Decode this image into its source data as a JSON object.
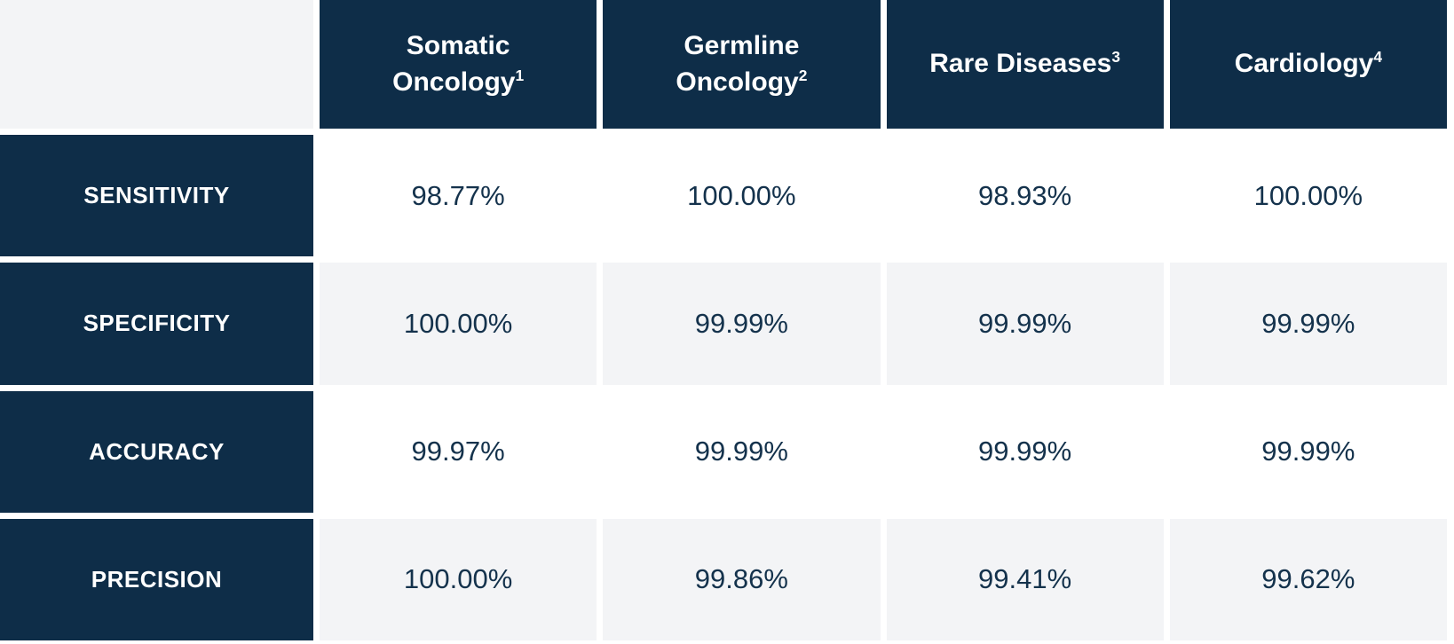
{
  "table": {
    "columns": [
      {
        "label": "Somatic Oncology",
        "footnote": "1"
      },
      {
        "label": "Germline Oncology",
        "footnote": "2"
      },
      {
        "label": "Rare Diseases",
        "footnote": "3"
      },
      {
        "label": "Cardiology",
        "footnote": "4"
      }
    ],
    "rows": [
      {
        "label": "SENSITIVITY",
        "values": [
          "98.77%",
          "100.00%",
          "98.93%",
          "100.00%"
        ]
      },
      {
        "label": "SPECIFICITY",
        "values": [
          "100.00%",
          "99.99%",
          "99.99%",
          "99.99%"
        ]
      },
      {
        "label": "ACCURACY",
        "values": [
          "99.97%",
          "99.99%",
          "99.99%",
          "99.99%"
        ]
      },
      {
        "label": "PRECISION",
        "values": [
          "100.00%",
          "99.86%",
          "99.41%",
          "99.62%"
        ]
      }
    ]
  },
  "colors": {
    "header_navy": "#0e2d48",
    "light_row_gray": "#f3f4f6",
    "white_row": "#ffffff",
    "data_text_navy": "#14324c",
    "header_text_white": "#ffffff"
  },
  "chart_data": {
    "type": "table",
    "columns": [
      "Somatic Oncology¹",
      "Germline Oncology²",
      "Rare Diseases³",
      "Cardiology⁴"
    ],
    "row_labels": [
      "SENSITIVITY",
      "SPECIFICITY",
      "ACCURACY",
      "PRECISION"
    ],
    "values": [
      [
        "98.77%",
        "100.00%",
        "98.93%",
        "100.00%"
      ],
      [
        "100.00%",
        "99.99%",
        "99.99%",
        "99.99%"
      ],
      [
        "99.97%",
        "99.99%",
        "99.99%",
        "99.99%"
      ],
      [
        "100.00%",
        "99.86%",
        "99.41%",
        "99.62%"
      ]
    ]
  }
}
